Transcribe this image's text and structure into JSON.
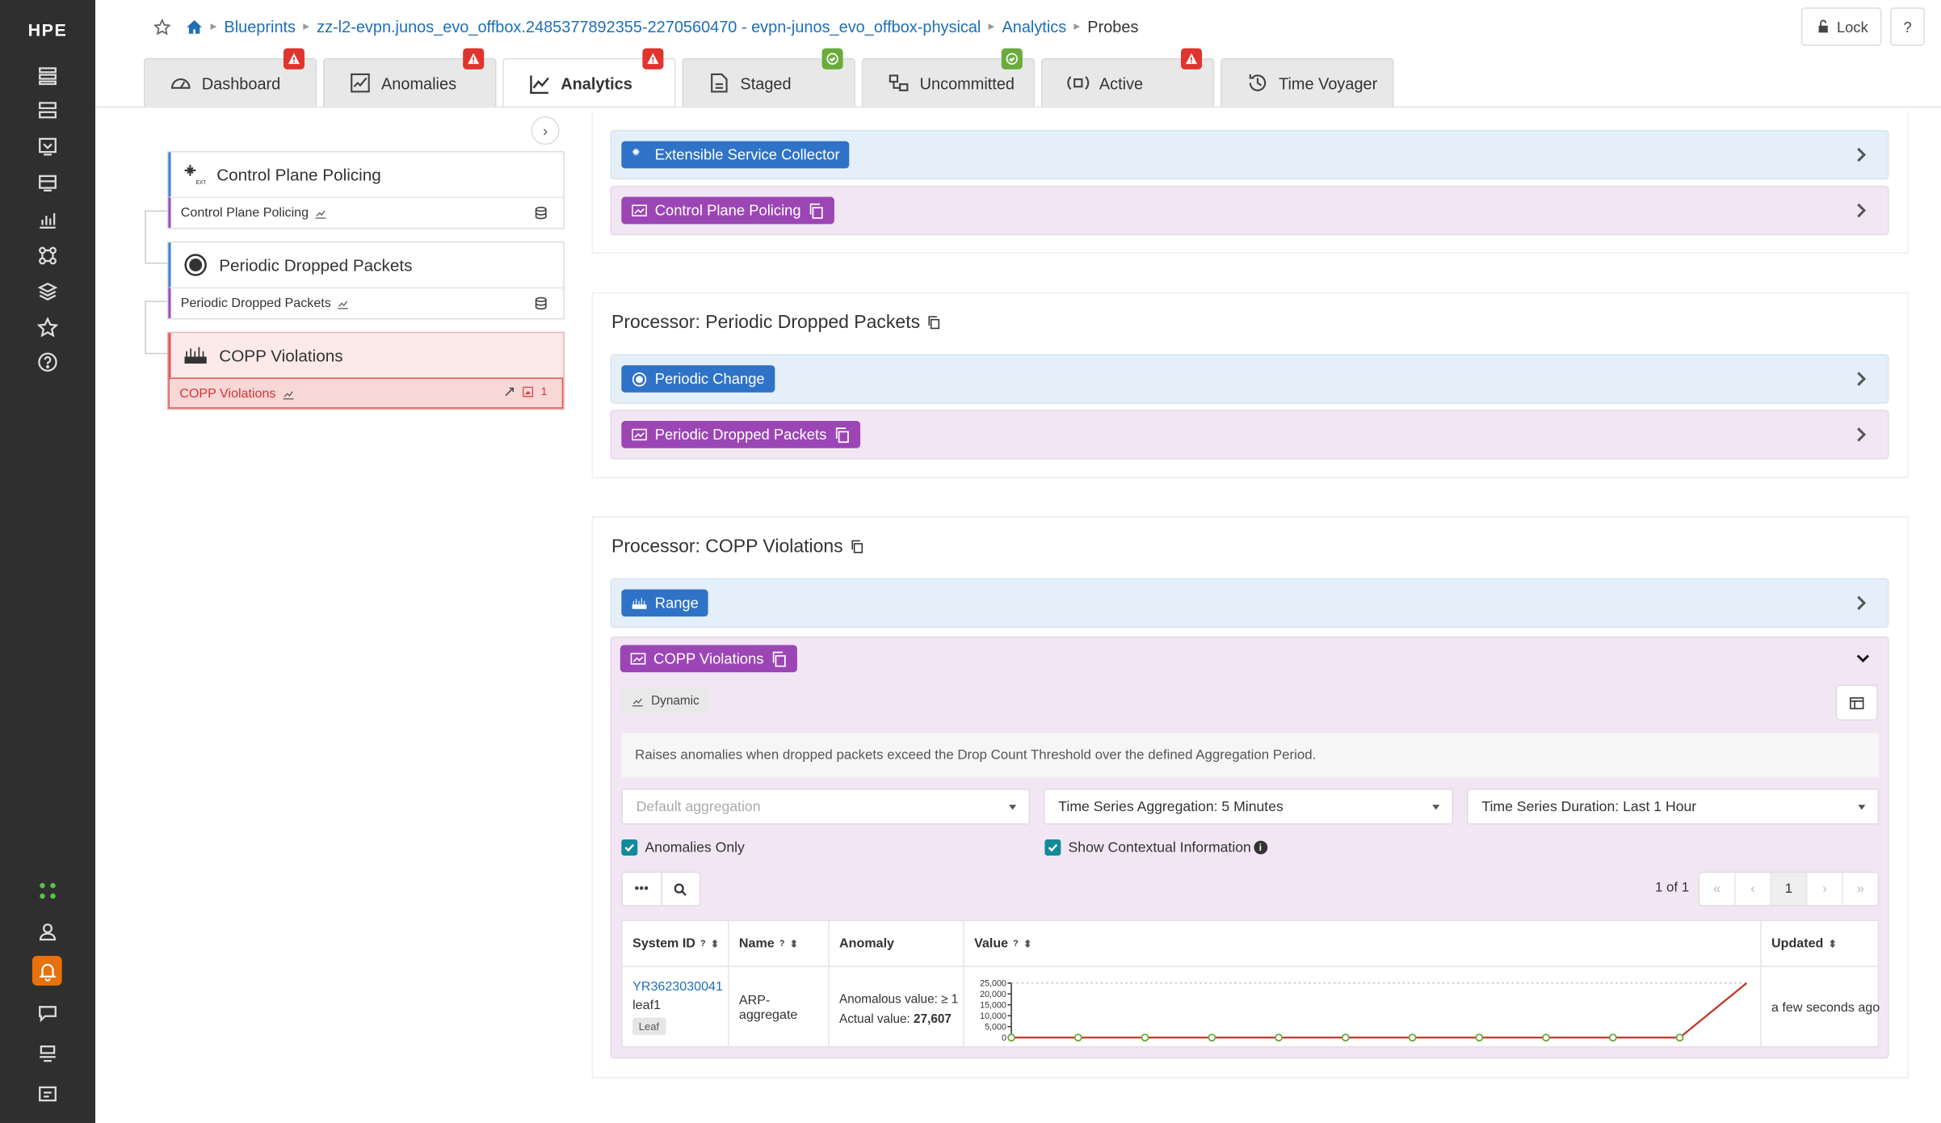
{
  "logo": "HPE",
  "breadcrumb": {
    "items": [
      "Blueprints",
      "zz-l2-evpn.junos_evo_offbox.2485377892355-2270560470 - evpn-junos_evo_offbox-physical",
      "Analytics"
    ],
    "current": "Probes"
  },
  "header": {
    "lock_label": "Lock",
    "help_label": "?"
  },
  "tabs": [
    {
      "label": "Dashboard",
      "badge": "alert"
    },
    {
      "label": "Anomalies",
      "badge": "alert"
    },
    {
      "label": "Analytics",
      "badge": "alert",
      "active": true
    },
    {
      "label": "Staged",
      "badge": "ok"
    },
    {
      "label": "Uncommitted",
      "badge": "ok"
    },
    {
      "label": "Active",
      "badge": "alert"
    },
    {
      "label": "Time Voyager",
      "badge": ""
    }
  ],
  "tree": [
    {
      "title": "Control Plane Policing",
      "sub": "Control Plane Policing",
      "icon": "extensible-collector-icon"
    },
    {
      "title": "Periodic Dropped Packets",
      "sub": "Periodic Dropped Packets",
      "icon": "periodic-change-icon"
    },
    {
      "title": "COPP Violations",
      "sub": "COPP Violations",
      "icon": "range-icon",
      "anomaly_count": "1"
    }
  ],
  "processors": {
    "first": {
      "stage1": "Extensible Service Collector",
      "stage2": "Control Plane Policing"
    },
    "second": {
      "title": "Processor: Periodic Dropped Packets",
      "stage1": "Periodic Change",
      "stage2": "Periodic Dropped Packets"
    },
    "third": {
      "title": "Processor: COPP Violations",
      "stage1": "Range",
      "stage2": "COPP Violations"
    }
  },
  "stage": {
    "tag": "Dynamic",
    "description": "Raises anomalies when dropped packets exceed the Drop Count Threshold over the defined Aggregation Period.",
    "aggregation_placeholder": "Default aggregation",
    "ts_aggregation": "Time Series Aggregation: 5 Minutes",
    "ts_duration": "Time Series Duration: Last 1 Hour",
    "anomalies_only": "Anomalies Only",
    "show_context": "Show Contextual Information",
    "pager_text": "1 of 1",
    "pager_page": "1"
  },
  "table": {
    "headers": [
      "System ID",
      "Name",
      "Anomaly",
      "Value",
      "Updated"
    ],
    "rows": [
      {
        "system_id": "YR3623030041",
        "hostname": "leaf1",
        "role": "Leaf",
        "name": "ARP-aggregate",
        "anomalous_value": "Anomalous value: ≥ 1",
        "actual_value_label": "Actual value:",
        "actual_value": "27,607",
        "updated": "a few seconds ago"
      }
    ]
  },
  "chart_data": {
    "type": "line",
    "y_ticks": [
      "25,000",
      "20,000",
      "15,000",
      "10,000",
      "5,000",
      "0"
    ],
    "ylim": [
      0,
      25000
    ],
    "values": [
      0,
      0,
      0,
      0,
      0,
      0,
      0,
      0,
      0,
      0,
      0,
      27607
    ],
    "colors": {
      "line": "#c0392b",
      "points": "#6aac3c"
    }
  }
}
